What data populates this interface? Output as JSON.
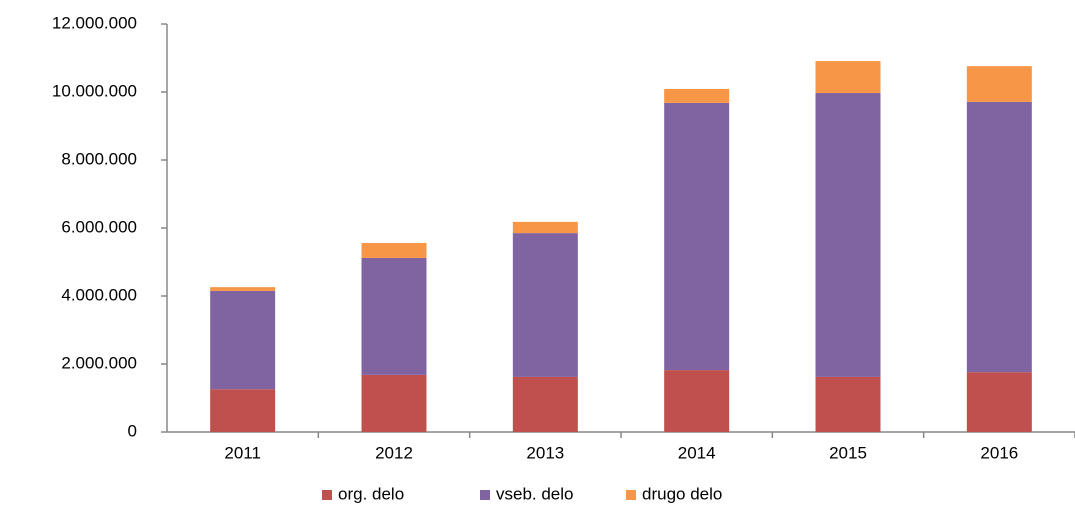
{
  "chart_data": {
    "type": "stacked_bar",
    "categories": [
      "2011",
      "2012",
      "2013",
      "2014",
      "2015",
      "2016"
    ],
    "series": [
      {
        "name": "org. delo",
        "color": "#c0504d",
        "values": [
          1260000,
          1680000,
          1620000,
          1820000,
          1620000,
          1760000
        ]
      },
      {
        "name": "vseb. delo",
        "color": "#8064a2",
        "values": [
          2890000,
          3440000,
          4230000,
          7860000,
          8350000,
          7950000
        ]
      },
      {
        "name": "drugo delo",
        "color": "#f79646",
        "values": [
          110000,
          440000,
          330000,
          410000,
          940000,
          1050000
        ]
      }
    ],
    "ylim": [
      0,
      12000000
    ],
    "yticks": [
      0,
      {
        "value": 2000000,
        "label": "2.000.000"
      },
      {
        "value": 4000000,
        "label": "4.000.000"
      },
      {
        "value": 6000000,
        "label": "6.000.000"
      },
      {
        "value": 8000000,
        "label": "8.000.000"
      },
      {
        "value": 10000000,
        "label": "10.000.000"
      },
      {
        "value": 12000000,
        "label": "12.000.000"
      }
    ],
    "grid": false,
    "legend": "bottom"
  }
}
